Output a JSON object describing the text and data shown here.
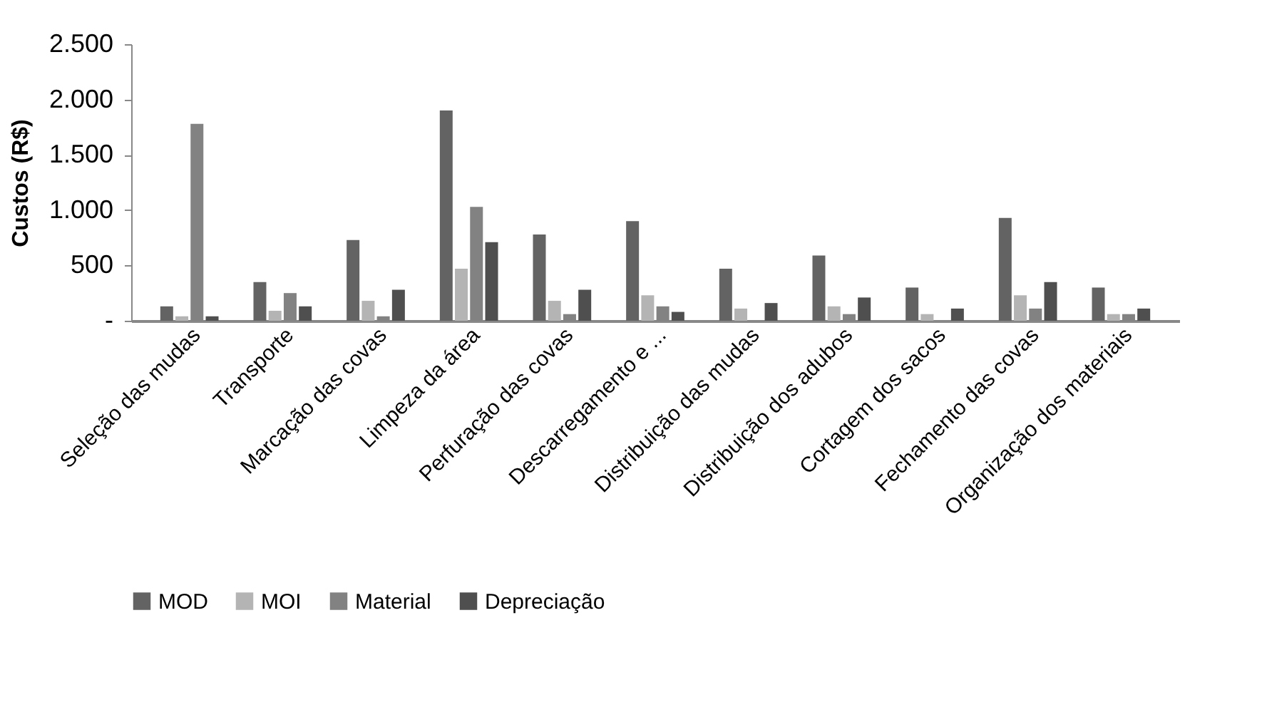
{
  "chart_data": {
    "type": "bar",
    "ylabel": "Custos (R$)",
    "categories": [
      "Seleção das mudas",
      "Transporte",
      "Marcação das covas",
      "Limpeza da área",
      "Perfuração das covas",
      "Descarregamento e ...",
      "Distribuição das mudas",
      "Distribuição dos adubos",
      "Cortagem dos sacos",
      "Fechamento das covas",
      "Organização dos materiais"
    ],
    "series": [
      {
        "name": "MOD",
        "color": "#636363",
        "values": [
          130,
          350,
          730,
          1900,
          780,
          900,
          470,
          590,
          300,
          930,
          300
        ]
      },
      {
        "name": "MOI",
        "color": "#b4b4b4",
        "values": [
          40,
          90,
          180,
          470,
          180,
          230,
          110,
          130,
          60,
          230,
          60
        ]
      },
      {
        "name": "Material",
        "color": "#828282",
        "values": [
          1780,
          250,
          40,
          1030,
          60,
          130,
          null,
          60,
          null,
          110,
          60
        ]
      },
      {
        "name": "Depreciação",
        "color": "#4f4f4f",
        "values": [
          40,
          130,
          280,
          710,
          280,
          80,
          160,
          210,
          110,
          350,
          110
        ]
      }
    ],
    "ylim": [
      0,
      2500
    ],
    "yticks": [
      {
        "value": 0,
        "label": "-"
      },
      500,
      {
        "value": 1000,
        "label": "1.000"
      },
      {
        "value": 1500,
        "label": "1.500"
      },
      {
        "value": 2000,
        "label": "2.000"
      },
      {
        "value": 2500,
        "label": "2.500"
      }
    ],
    "grid": false,
    "legend": "bottom"
  }
}
